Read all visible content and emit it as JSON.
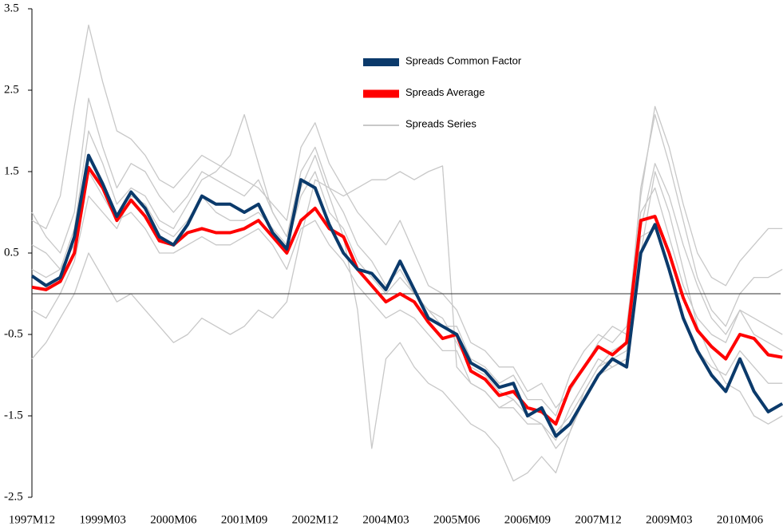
{
  "chart_data": {
    "type": "line",
    "categories": [
      "1997M12",
      null,
      null,
      null,
      null,
      "1999M03",
      null,
      null,
      null,
      null,
      "2000M06",
      null,
      null,
      null,
      null,
      "2001M09",
      null,
      null,
      null,
      null,
      "2002M12",
      null,
      null,
      null,
      null,
      "2004M03",
      null,
      null,
      null,
      null,
      "2005M06",
      null,
      null,
      null,
      null,
      "2006M09",
      null,
      null,
      null,
      null,
      "2007M12",
      null,
      null,
      null,
      null,
      "2009M03",
      null,
      null,
      null,
      null,
      "2010M06",
      null,
      null,
      null
    ],
    "series": [
      {
        "name": "Spreads Common Factor",
        "color": "#0b3a6b",
        "values": [
          0.22,
          0.1,
          0.2,
          0.7,
          1.7,
          1.35,
          0.95,
          1.25,
          1.05,
          0.7,
          0.6,
          0.85,
          1.2,
          1.1,
          1.1,
          1.0,
          1.1,
          0.75,
          0.55,
          1.4,
          1.3,
          0.85,
          0.5,
          0.3,
          0.25,
          0.05,
          0.4,
          0.05,
          -0.3,
          -0.4,
          -0.5,
          -0.85,
          -0.95,
          -1.15,
          -1.1,
          -1.5,
          -1.4,
          -1.75,
          -1.6,
          -1.3,
          -1.0,
          -0.8,
          -0.9,
          0.5,
          0.85,
          0.3,
          -0.3,
          -0.7,
          -1.0,
          -1.2,
          -0.8,
          -1.2,
          -1.45,
          -1.35
        ]
      },
      {
        "name": "Spreads Average",
        "color": "#ff0000",
        "values": [
          0.08,
          0.05,
          0.15,
          0.5,
          1.55,
          1.3,
          0.9,
          1.15,
          0.95,
          0.65,
          0.6,
          0.75,
          0.8,
          0.75,
          0.75,
          0.8,
          0.9,
          0.7,
          0.5,
          0.9,
          1.05,
          0.8,
          0.7,
          0.3,
          0.1,
          -0.1,
          0.0,
          -0.1,
          -0.35,
          -0.55,
          -0.5,
          -0.95,
          -1.05,
          -1.25,
          -1.2,
          -1.4,
          -1.45,
          -1.6,
          -1.15,
          -0.9,
          -0.65,
          -0.75,
          -0.6,
          0.9,
          0.95,
          0.5,
          -0.05,
          -0.45,
          -0.65,
          -0.8,
          -0.5,
          -0.55,
          -0.75,
          -0.78
        ]
      },
      {
        "name": "Spreads Series",
        "color": "#c8c8c8",
        "lines": [
          [
            0.9,
            0.8,
            1.2,
            2.3,
            3.3,
            2.6,
            2.0,
            1.9,
            1.7,
            1.4,
            1.3,
            1.5,
            1.7,
            1.6,
            1.5,
            1.4,
            1.3,
            1.1,
            0.9,
            1.8,
            2.1,
            1.6,
            1.3,
            1.0,
            0.8,
            0.6,
            0.9,
            0.5,
            0.1,
            0.0,
            -0.2,
            -0.6,
            -0.7,
            -0.9,
            -0.9,
            -1.2,
            -1.1,
            -1.4,
            -1.2,
            -0.9,
            -0.6,
            -0.4,
            -0.5,
            1.2,
            2.3,
            1.8,
            1.1,
            0.5,
            0.2,
            0.1,
            0.4,
            0.6,
            0.8,
            0.8
          ],
          [
            -0.8,
            -0.6,
            -0.3,
            0.0,
            0.5,
            0.2,
            -0.1,
            0.0,
            -0.2,
            -0.4,
            -0.6,
            -0.5,
            -0.3,
            -0.4,
            -0.5,
            -0.4,
            -0.2,
            -0.3,
            -0.1,
            0.7,
            1.4,
            1.3,
            1.2,
            1.3,
            1.4,
            1.4,
            1.5,
            1.4,
            1.5,
            1.57,
            -0.9,
            -1.1,
            -1.2,
            -1.4,
            -1.4,
            -1.6,
            -1.6,
            -1.9,
            -1.7,
            -1.2,
            -0.9,
            -0.8,
            -0.7,
            0.8,
            1.6,
            1.2,
            0.6,
            0.1,
            -0.3,
            -0.5,
            -0.2,
            -0.5,
            -0.6,
            -0.7
          ],
          [
            1.0,
            0.7,
            0.5,
            1.0,
            2.4,
            1.8,
            1.3,
            1.6,
            1.5,
            1.2,
            1.0,
            1.2,
            1.5,
            1.4,
            1.3,
            1.2,
            1.4,
            1.0,
            0.7,
            1.3,
            1.7,
            1.2,
            0.7,
            -0.2,
            -1.9,
            -0.8,
            -0.6,
            -0.9,
            -1.1,
            -1.2,
            -1.4,
            -1.6,
            -1.7,
            -1.9,
            -2.3,
            -2.2,
            -2.0,
            -2.2,
            -1.7,
            -1.3,
            -1.0,
            -0.9,
            -0.8,
            0.5,
            1.5,
            1.0,
            0.3,
            -0.4,
            -0.8,
            -1.1,
            -1.2,
            -1.5,
            -1.6,
            -1.5
          ],
          [
            0.3,
            0.2,
            0.3,
            0.6,
            1.5,
            1.2,
            0.9,
            1.0,
            0.8,
            0.5,
            0.5,
            0.6,
            0.7,
            0.6,
            0.6,
            0.7,
            0.8,
            0.6,
            0.3,
            0.8,
            0.9,
            0.6,
            0.4,
            0.1,
            -0.1,
            -0.3,
            -0.2,
            -0.3,
            -0.5,
            -0.7,
            -0.7,
            -1.1,
            -1.2,
            -1.4,
            -1.3,
            -1.5,
            -1.6,
            -1.8,
            -1.4,
            -1.1,
            -0.8,
            -0.9,
            -0.8,
            0.7,
            0.8,
            0.3,
            -0.3,
            -0.7,
            -0.9,
            -1.0,
            -0.7,
            -0.9,
            -1.1,
            -1.1
          ],
          [
            -0.2,
            -0.3,
            0.0,
            0.4,
            1.2,
            1.0,
            0.8,
            1.2,
            1.1,
            0.8,
            0.7,
            0.9,
            1.2,
            1.0,
            0.9,
            0.9,
            1.0,
            0.8,
            0.6,
            1.2,
            1.5,
            1.0,
            0.8,
            0.4,
            0.2,
            0.0,
            0.2,
            0.0,
            -0.2,
            -0.4,
            -0.4,
            -0.8,
            -0.9,
            -1.1,
            -1.0,
            -1.3,
            -1.3,
            -1.5,
            -1.0,
            -0.7,
            -0.5,
            -0.6,
            -0.4,
            1.0,
            1.3,
            0.7,
            0.1,
            -0.3,
            -0.5,
            -0.6,
            -0.2,
            -0.3,
            -0.4,
            -0.5
          ],
          [
            0.6,
            0.5,
            0.3,
            0.8,
            2.0,
            1.6,
            1.1,
            1.3,
            1.2,
            0.9,
            0.8,
            1.1,
            1.4,
            1.5,
            1.7,
            2.2,
            1.6,
            1.0,
            0.7,
            1.5,
            1.8,
            1.3,
            1.0,
            0.6,
            0.4,
            0.1,
            0.3,
            0.0,
            -0.2,
            -0.3,
            -0.6,
            -0.9,
            -1.0,
            -1.2,
            -1.3,
            -1.5,
            -1.4,
            -1.7,
            -1.5,
            -1.2,
            -0.9,
            -0.7,
            -0.6,
            1.3,
            2.2,
            1.6,
            0.9,
            0.2,
            -0.2,
            -0.4,
            0.0,
            0.2,
            0.2,
            0.3
          ]
        ]
      }
    ],
    "ylim": [
      -2.5,
      3.5
    ],
    "yticks": [
      3.5,
      2.5,
      1.5,
      0.5,
      -0.5,
      -1.5,
      -2.5
    ],
    "legend": "top-right"
  }
}
